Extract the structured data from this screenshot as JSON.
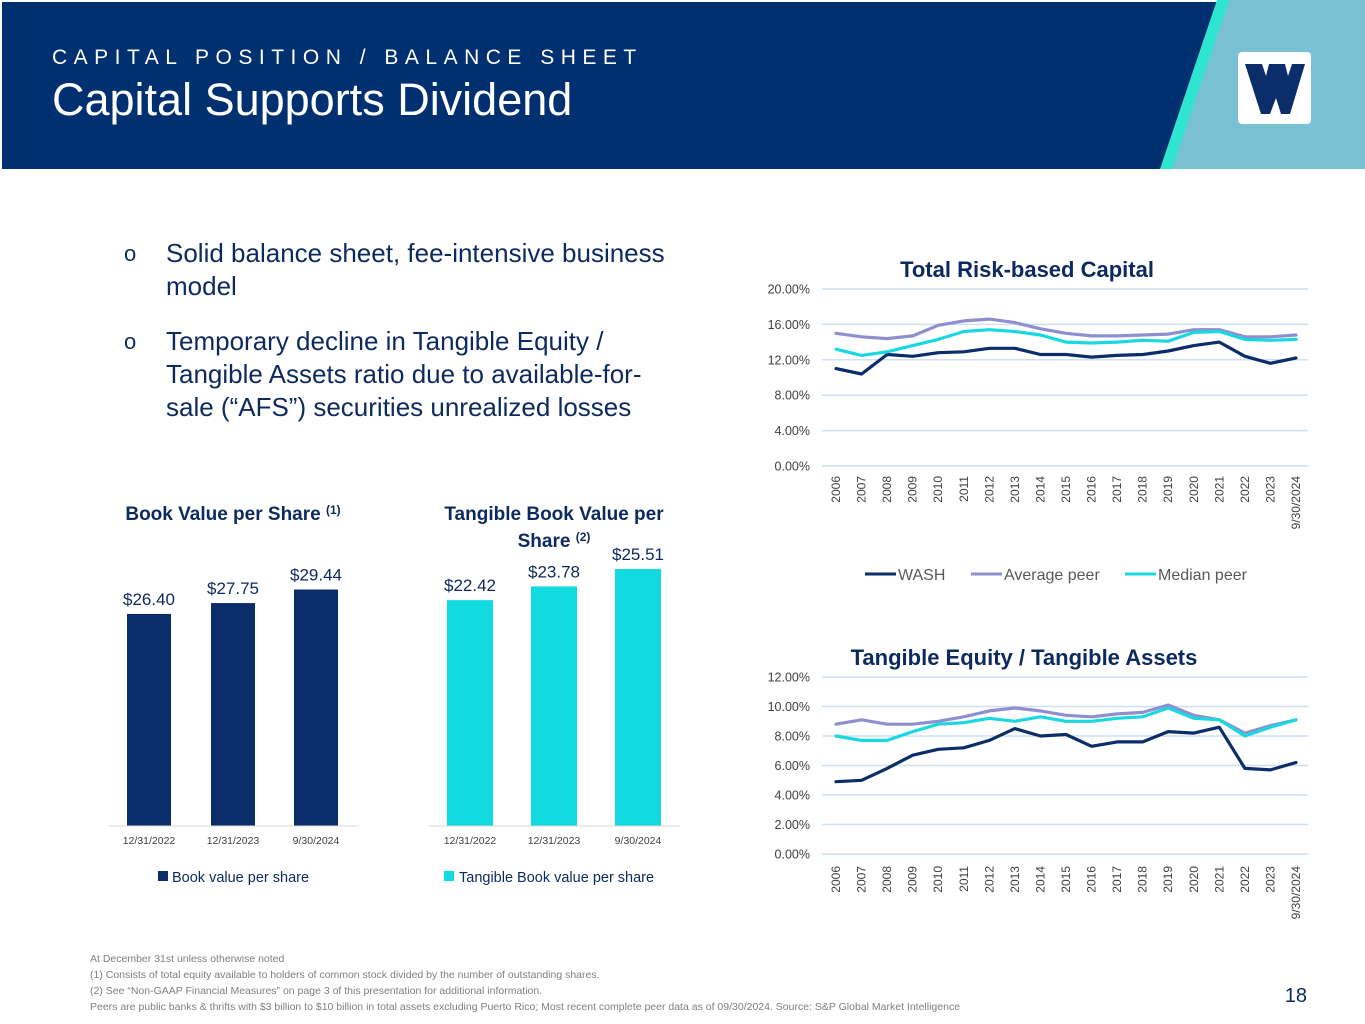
{
  "header": {
    "eyebrow": "CAPITAL POSITION / BALANCE SHEET",
    "title": "Capital Supports Dividend",
    "logo_icon": "washington-trust-logo",
    "colors": {
      "navy": "#003070",
      "teal_stripe": "#2ee6d0",
      "light_blue": "#78c0d2"
    }
  },
  "bullets": [
    {
      "mark": "o",
      "text": "Solid balance sheet, fee-intensive business model"
    },
    {
      "mark": "o",
      "text": "Temporary decline in Tangible Equity / Tangible Assets ratio due to available-for-sale (“AFS”) securities unrealized losses"
    }
  ],
  "chart_data": [
    {
      "type": "bar",
      "title": "Book Value per Share",
      "title_sup": "(1)",
      "categories": [
        "12/31/2022",
        "12/31/2023",
        "9/30/2024"
      ],
      "values": [
        26.4,
        27.75,
        29.44
      ],
      "data_labels": [
        "$26.40",
        "$27.75",
        "$29.44"
      ],
      "ylim": [
        0,
        30
      ],
      "color": "#0b2d69",
      "legend": "Book value per share",
      "legend_position": "bottom"
    },
    {
      "type": "bar",
      "title_lines": [
        "Tangible Book Value per",
        "Share"
      ],
      "title_sup": "(2)",
      "categories": [
        "12/31/2022",
        "12/31/2023",
        "9/30/2024"
      ],
      "values": [
        22.42,
        23.78,
        25.51
      ],
      "data_labels": [
        "$22.42",
        "$23.78",
        "$25.51"
      ],
      "ylim": [
        0,
        25.51
      ],
      "color": "#12dbe0",
      "legend": "Tangible Book value per share",
      "legend_position": "bottom"
    },
    {
      "type": "line",
      "title": "Total Risk-based Capital",
      "x": [
        "2006",
        "2007",
        "2008",
        "2009",
        "2010",
        "2011",
        "2012",
        "2013",
        "2014",
        "2015",
        "2016",
        "2017",
        "2018",
        "2019",
        "2020",
        "2021",
        "2022",
        "2023",
        "9/30/2024"
      ],
      "yticks": [
        "0.00%",
        "4.00%",
        "8.00%",
        "12.00%",
        "16.00%",
        "20.00%"
      ],
      "ylim": [
        0,
        20
      ],
      "grid": true,
      "legend_position": "bottom",
      "series": [
        {
          "name": "WASH",
          "color": "#0b2d69",
          "values": [
            11.0,
            10.4,
            12.6,
            12.4,
            12.8,
            12.9,
            13.3,
            13.3,
            12.6,
            12.6,
            12.3,
            12.5,
            12.6,
            13.0,
            13.6,
            14.0,
            12.4,
            11.6,
            12.2
          ]
        },
        {
          "name": "Average peer",
          "color": "#8f8fd0",
          "values": [
            15.0,
            14.6,
            14.4,
            14.7,
            15.9,
            16.4,
            16.6,
            16.2,
            15.5,
            15.0,
            14.7,
            14.7,
            14.8,
            14.9,
            15.4,
            15.4,
            14.6,
            14.6,
            14.8
          ]
        },
        {
          "name": "Median peer",
          "color": "#1ad8df",
          "values": [
            13.2,
            12.5,
            12.9,
            13.6,
            14.3,
            15.2,
            15.4,
            15.2,
            14.8,
            14.0,
            13.9,
            14.0,
            14.2,
            14.1,
            15.1,
            15.2,
            14.3,
            14.2,
            14.3
          ]
        }
      ]
    },
    {
      "type": "line",
      "title": "Tangible Equity / Tangible Assets",
      "x": [
        "2006",
        "2007",
        "2008",
        "2009",
        "2010",
        "2011",
        "2012",
        "2013",
        "2014",
        "2015",
        "2016",
        "2017",
        "2018",
        "2019",
        "2020",
        "2021",
        "2022",
        "2023",
        "9/30/2024"
      ],
      "yticks": [
        "0.00%",
        "2.00%",
        "4.00%",
        "6.00%",
        "8.00%",
        "10.00%",
        "12.00%"
      ],
      "ylim": [
        0,
        12
      ],
      "grid": true,
      "series": [
        {
          "name": "WASH",
          "color": "#0b2d69",
          "values": [
            4.9,
            5.0,
            5.8,
            6.7,
            7.1,
            7.2,
            7.7,
            8.5,
            8.0,
            8.1,
            7.3,
            7.6,
            7.6,
            8.3,
            8.2,
            8.6,
            5.8,
            5.7,
            6.2
          ]
        },
        {
          "name": "Average peer",
          "color": "#8f8fd0",
          "values": [
            8.8,
            9.1,
            8.8,
            8.8,
            9.0,
            9.3,
            9.7,
            9.9,
            9.7,
            9.4,
            9.3,
            9.5,
            9.6,
            10.1,
            9.4,
            9.1,
            8.2,
            8.7,
            9.1
          ]
        },
        {
          "name": "Median peer",
          "color": "#1ad8df",
          "values": [
            8.0,
            7.7,
            7.7,
            8.3,
            8.8,
            8.9,
            9.2,
            9.0,
            9.3,
            9.0,
            9.0,
            9.2,
            9.3,
            9.9,
            9.2,
            9.1,
            8.0,
            8.6,
            9.1
          ]
        }
      ]
    }
  ],
  "footnotes": [
    "At December 31st unless otherwise noted",
    "(1) Consists of total equity available to holders of common stock divided by the number of outstanding shares.",
    "(2) See “Non-GAAP Financial Measures” on page 3 of this presentation for additional information.",
    "Peers are public banks & thrifts with $3 billion to $10 billion in total assets excluding Puerto Rico; Most recent complete peer data as of 09/30/2024. Source: S&P Global Market Intelligence"
  ],
  "page_number": "18"
}
